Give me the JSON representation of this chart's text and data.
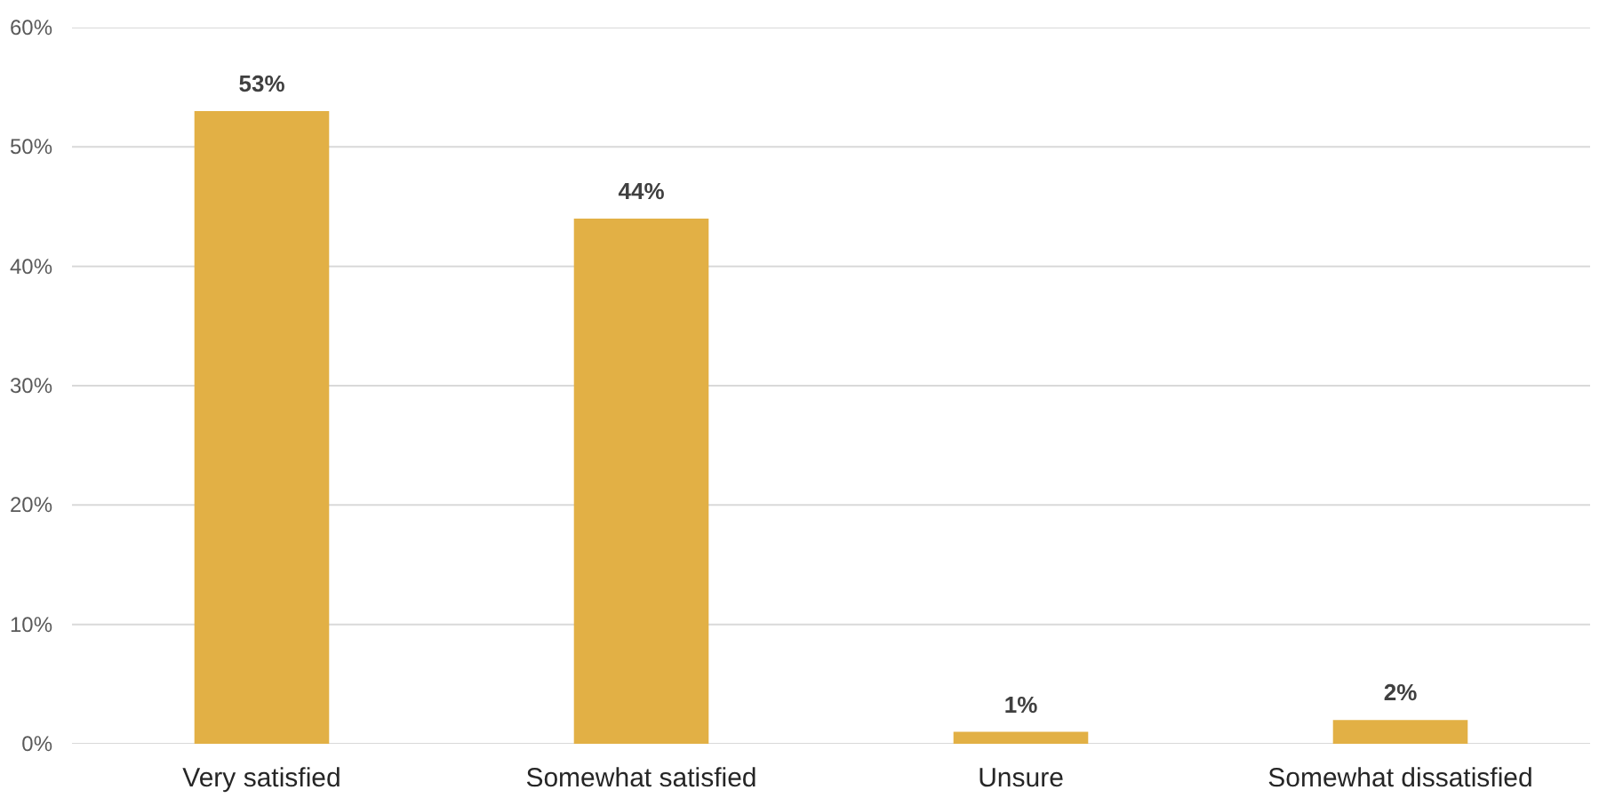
{
  "chart_data": {
    "type": "bar",
    "categories": [
      "Very satisfied",
      "Somewhat satisfied",
      "Unsure",
      "Somewhat dissatisfied"
    ],
    "values": [
      53,
      44,
      1,
      2
    ],
    "color": "#e2b045",
    "ylim": [
      0,
      60
    ],
    "yticks": [
      {
        "value": 0,
        "label": "0%"
      },
      {
        "value": 10,
        "label": "10%"
      },
      {
        "value": 20,
        "label": "20%"
      },
      {
        "value": 30,
        "label": "30%"
      },
      {
        "value": 40,
        "label": "40%"
      },
      {
        "value": 50,
        "label": "50%"
      },
      {
        "value": 60,
        "label": "60%"
      }
    ],
    "value_labels": [
      "53%",
      "44%",
      "1%",
      "2%"
    ],
    "grid": "y"
  }
}
